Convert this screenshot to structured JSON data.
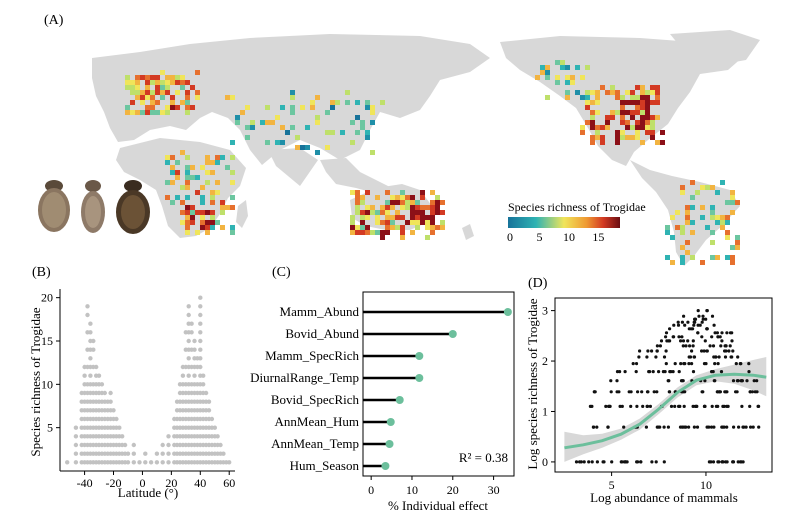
{
  "panels": {
    "a": "(A)",
    "b": "(B)",
    "c": "(C)",
    "d": "(D)"
  },
  "map": {
    "legend_title": "Species richness of Trogidae",
    "legend_ticks": [
      "0",
      "5",
      "10",
      "15"
    ],
    "colors": {
      "land": "#d8d8d8",
      "low": "#1f7fa6",
      "mid": "#e8d94a",
      "high": "#c0241c"
    }
  },
  "chart_data": [
    {
      "panel": "B",
      "type": "scatter",
      "xlabel": "Latitude (°)",
      "ylabel": "Species richness of Trogidae",
      "xlim": [
        -57,
        64
      ],
      "ylim": [
        0,
        21
      ],
      "x_ticks": [
        -40,
        -20,
        0,
        20,
        40,
        60
      ],
      "y_ticks": [
        5,
        10,
        15,
        20
      ],
      "color": "#c2c2c2",
      "max_profile": [
        {
          "lat": -52,
          "max": 1
        },
        {
          "lat": -46,
          "max": 5
        },
        {
          "lat": -42,
          "max": 9
        },
        {
          "lat": -40,
          "max": 12
        },
        {
          "lat": -38,
          "max": 19
        },
        {
          "lat": -36,
          "max": 17
        },
        {
          "lat": -34,
          "max": 15
        },
        {
          "lat": -32,
          "max": 12
        },
        {
          "lat": -30,
          "max": 11
        },
        {
          "lat": -28,
          "max": 10
        },
        {
          "lat": -26,
          "max": 9
        },
        {
          "lat": -24,
          "max": 8
        },
        {
          "lat": -22,
          "max": 9
        },
        {
          "lat": -20,
          "max": 7
        },
        {
          "lat": -18,
          "max": 6
        },
        {
          "lat": -16,
          "max": 5
        },
        {
          "lat": -14,
          "max": 4
        },
        {
          "lat": -12,
          "max": 3
        },
        {
          "lat": -10,
          "max": 2
        },
        {
          "lat": -6,
          "max": 3
        },
        {
          "lat": -2,
          "max": 1
        },
        {
          "lat": 2,
          "max": 2
        },
        {
          "lat": 6,
          "max": 1
        },
        {
          "lat": 10,
          "max": 2
        },
        {
          "lat": 14,
          "max": 3
        },
        {
          "lat": 18,
          "max": 4
        },
        {
          "lat": 22,
          "max": 6
        },
        {
          "lat": 24,
          "max": 8
        },
        {
          "lat": 26,
          "max": 10
        },
        {
          "lat": 28,
          "max": 12
        },
        {
          "lat": 30,
          "max": 16
        },
        {
          "lat": 32,
          "max": 19
        },
        {
          "lat": 34,
          "max": 17
        },
        {
          "lat": 36,
          "max": 15
        },
        {
          "lat": 38,
          "max": 13
        },
        {
          "lat": 40,
          "max": 20
        },
        {
          "lat": 42,
          "max": 11
        },
        {
          "lat": 44,
          "max": 9
        },
        {
          "lat": 46,
          "max": 8
        },
        {
          "lat": 48,
          "max": 6
        },
        {
          "lat": 50,
          "max": 5
        },
        {
          "lat": 52,
          "max": 4
        },
        {
          "lat": 54,
          "max": 3
        },
        {
          "lat": 56,
          "max": 2
        },
        {
          "lat": 58,
          "max": 1
        },
        {
          "lat": 60,
          "max": 1
        }
      ]
    },
    {
      "panel": "C",
      "type": "bar",
      "orientation": "horizontal",
      "style": "lollipop",
      "categories": [
        "Mamm_Abund",
        "Bovid_Abund",
        "Mamm_SpecRich",
        "DiurnalRange_Temp",
        "Bovid_SpecRich",
        "AnnMean_Hum",
        "AnnMean_Temp",
        "Hum_Season"
      ],
      "values": [
        33.5,
        20,
        11.8,
        11.8,
        7,
        4.8,
        4.5,
        3.5
      ],
      "xlabel": "% Individual effect",
      "xlim": [
        -2,
        35
      ],
      "x_ticks": [
        0,
        10,
        20,
        30
      ],
      "annotation": "R² = 0.38",
      "point_color": "#6cbf9c"
    },
    {
      "panel": "D",
      "type": "scatter",
      "xlabel": "Log abundance of mammals",
      "ylabel": "Log species richness of Trogidae",
      "xlim": [
        2,
        13.5
      ],
      "ylim": [
        -0.2,
        3.25
      ],
      "x_ticks": [
        5,
        10
      ],
      "y_ticks": [
        0,
        1,
        2,
        3
      ],
      "point_color": "#111111",
      "fit_color": "#6cbf9c",
      "fit": {
        "x": [
          2.5,
          3.5,
          4.5,
          5.5,
          6.5,
          7.5,
          8.5,
          9.5,
          10.5,
          11.5,
          12.5,
          13.2
        ],
        "y": [
          0.28,
          0.34,
          0.42,
          0.55,
          0.75,
          1.05,
          1.38,
          1.62,
          1.72,
          1.74,
          1.72,
          1.68
        ],
        "lo": [
          0.0,
          0.15,
          0.28,
          0.44,
          0.64,
          0.95,
          1.28,
          1.52,
          1.6,
          1.55,
          1.42,
          1.3
        ],
        "hi": [
          0.6,
          0.53,
          0.56,
          0.66,
          0.86,
          1.15,
          1.48,
          1.72,
          1.84,
          1.93,
          2.02,
          2.08
        ]
      },
      "levels": [
        {
          "y": 0,
          "xmin": 2.8,
          "xmax": 12.4
        },
        {
          "y": 0.69,
          "xmin": 3.5,
          "xmax": 12.8
        },
        {
          "y": 1.1,
          "xmin": 3.7,
          "xmax": 12.9
        },
        {
          "y": 1.39,
          "xmin": 4.0,
          "xmax": 13.0
        },
        {
          "y": 1.61,
          "xmin": 4.8,
          "xmax": 12.8
        },
        {
          "y": 1.79,
          "xmin": 5.2,
          "xmax": 12.5
        },
        {
          "y": 1.95,
          "xmin": 5.6,
          "xmax": 12.3
        },
        {
          "y": 2.08,
          "xmin": 6.0,
          "xmax": 12.2
        },
        {
          "y": 2.2,
          "xmin": 6.4,
          "xmax": 12.0
        },
        {
          "y": 2.3,
          "xmin": 6.8,
          "xmax": 11.8
        },
        {
          "y": 2.4,
          "xmin": 7.2,
          "xmax": 11.6
        },
        {
          "y": 2.48,
          "xmin": 7.5,
          "xmax": 11.5
        },
        {
          "y": 2.56,
          "xmin": 7.8,
          "xmax": 11.4
        },
        {
          "y": 2.64,
          "xmin": 8.0,
          "xmax": 11.2
        },
        {
          "y": 2.71,
          "xmin": 8.2,
          "xmax": 11.0
        },
        {
          "y": 2.77,
          "xmin": 8.4,
          "xmax": 10.8
        },
        {
          "y": 2.83,
          "xmin": 8.6,
          "xmax": 10.6
        },
        {
          "y": 2.89,
          "xmin": 8.8,
          "xmax": 10.4
        },
        {
          "y": 3.0,
          "xmin": 9.0,
          "xmax": 10.2
        }
      ]
    }
  ]
}
